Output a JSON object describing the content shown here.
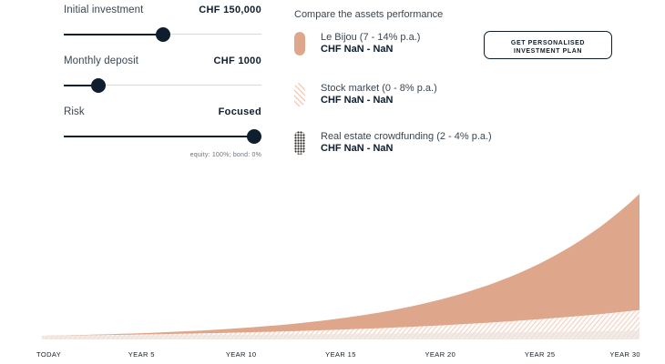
{
  "controls": {
    "initial": {
      "label": "Initial investment",
      "value": "CHF 150,000",
      "level": 0.5
    },
    "monthly": {
      "label": "Monthly deposit",
      "value": "CHF 1000",
      "level": 0.15
    },
    "risk": {
      "label": "Risk",
      "value": "Focused",
      "level": 1.0,
      "note": "equity: 100%; bond: 0%"
    }
  },
  "compare": {
    "title": "Compare the assets performance",
    "assets": [
      {
        "name": "Le Bijou (7 - 14% p.a.)",
        "range": "CHF NaN - NaN",
        "color": "#dea68b",
        "pattern": "solid"
      },
      {
        "name": "Stock market (0 - 8% p.a.)",
        "range": "CHF NaN - NaN",
        "color": "#f0c6b4",
        "pattern": "stripes"
      },
      {
        "name": "Real estate crowdfunding (2 - 4% p.a.)",
        "range": "CHF NaN - NaN",
        "color": "#2a2522",
        "pattern": "dots"
      }
    ]
  },
  "cta": {
    "line1": "GET PERSONALISED",
    "line2": "INVESTMENT PLAN"
  },
  "chart_data": {
    "type": "area",
    "x_ticks": [
      "TODAY",
      "YEAR 5",
      "YEAR 10",
      "YEAR 15",
      "YEAR 20",
      "YEAR 25",
      "YEAR 30"
    ],
    "series": [
      {
        "name": "Le Bijou (7 - 14% p.a.)",
        "growth_low": 0.07,
        "growth_high": 0.14,
        "color": "#dea68b"
      },
      {
        "name": "Stock market (0 - 8% p.a.)",
        "growth_low": 0.0,
        "growth_high": 0.08,
        "color": "#f0c6b4"
      },
      {
        "name": "Real estate crowdfunding (2 - 4% p.a.)",
        "growth_low": 0.02,
        "growth_high": 0.04,
        "color": "#e9e4e0"
      }
    ],
    "grid": false,
    "legend": "top"
  }
}
